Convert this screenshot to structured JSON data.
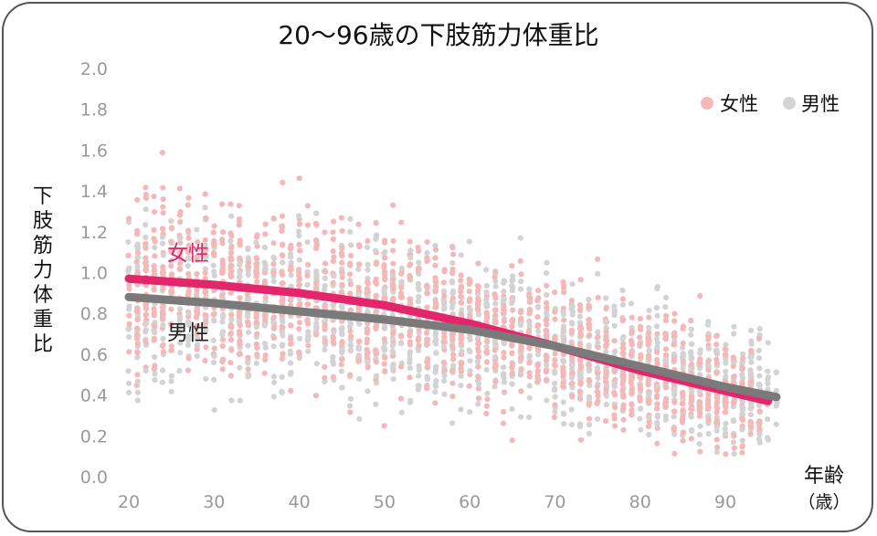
{
  "chart_data": {
    "type": "scatter",
    "title": "20～96歳の下肢筋力体重比",
    "ylabel": "下肢筋力体重比",
    "xlabel_line1": "年齢",
    "xlabel_line2": "（歳）",
    "xlim": [
      20,
      96
    ],
    "ylim": [
      0.0,
      2.0
    ],
    "xticks": [
      "20",
      "30",
      "40",
      "50",
      "60",
      "70",
      "80",
      "90"
    ],
    "yticks": [
      "0.0",
      "0.2",
      "0.4",
      "0.6",
      "0.8",
      "1.0",
      "1.2",
      "1.4",
      "1.6",
      "1.8",
      "2.0"
    ],
    "legend_position": "top-right",
    "grid": false,
    "series": [
      {
        "name": "女性",
        "point_color": "#f4b8b8",
        "curve_color": "#e3256b",
        "curve_label": "女性",
        "trend": [
          [
            20,
            0.97
          ],
          [
            30,
            0.94
          ],
          [
            40,
            0.9
          ],
          [
            50,
            0.84
          ],
          [
            60,
            0.75
          ],
          [
            70,
            0.64
          ],
          [
            80,
            0.52
          ],
          [
            90,
            0.42
          ],
          [
            95,
            0.37
          ]
        ]
      },
      {
        "name": "男性",
        "point_color": "#d3d3d3",
        "curve_color": "#7a7a7a",
        "curve_label": "男性",
        "trend": [
          [
            20,
            0.88
          ],
          [
            30,
            0.85
          ],
          [
            40,
            0.81
          ],
          [
            50,
            0.77
          ],
          [
            60,
            0.72
          ],
          [
            70,
            0.64
          ],
          [
            80,
            0.54
          ],
          [
            90,
            0.44
          ],
          [
            96,
            0.39
          ]
        ]
      }
    ]
  }
}
